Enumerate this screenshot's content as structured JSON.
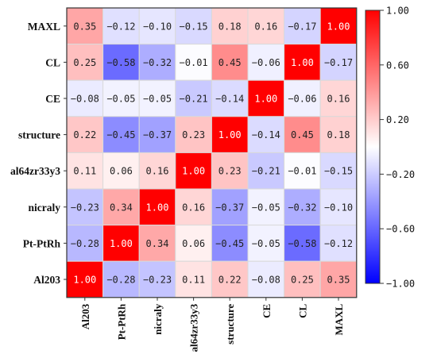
{
  "chart_data": {
    "type": "heatmap",
    "title": "",
    "rows": [
      "MAXL",
      "CL",
      "CE",
      "structure",
      "al64zr33y3",
      "nicraly",
      "Pt-PtRh",
      "Al203"
    ],
    "columns": [
      "Al203",
      "Pt-PtRh",
      "nicraly",
      "al64zr33y3",
      "structure",
      "CE",
      "CL",
      "MAXL"
    ],
    "values": [
      [
        0.35,
        -0.12,
        -0.1,
        -0.15,
        0.18,
        0.16,
        -0.17,
        1.0
      ],
      [
        0.25,
        -0.58,
        -0.32,
        -0.01,
        0.45,
        -0.06,
        1.0,
        -0.17
      ],
      [
        -0.08,
        -0.05,
        -0.05,
        -0.21,
        -0.14,
        1.0,
        -0.06,
        0.16
      ],
      [
        0.22,
        -0.45,
        -0.37,
        0.23,
        1.0,
        -0.14,
        0.45,
        0.18
      ],
      [
        0.11,
        0.06,
        0.16,
        1.0,
        0.23,
        -0.21,
        -0.01,
        -0.15
      ],
      [
        -0.23,
        0.34,
        1.0,
        0.16,
        -0.37,
        -0.05,
        -0.32,
        -0.1
      ],
      [
        -0.28,
        1.0,
        0.34,
        0.06,
        -0.45,
        -0.05,
        -0.58,
        -0.12
      ],
      [
        1.0,
        -0.28,
        -0.23,
        0.11,
        0.22,
        -0.08,
        0.25,
        0.35
      ]
    ],
    "value_labels": [
      [
        "0.35",
        "−0.12",
        "−0.10",
        "−0.15",
        "0.18",
        "0.16",
        "−0.17",
        "1.00"
      ],
      [
        "0.25",
        "−0.58",
        "−0.32",
        "−0.01",
        "0.45",
        "−0.06",
        "1.00",
        "−0.17"
      ],
      [
        "−0.08",
        "−0.05",
        "−0.05",
        "−0.21",
        "−0.14",
        "1.00",
        "−0.06",
        "0.16"
      ],
      [
        "0.22",
        "−0.45",
        "−0.37",
        "0.23",
        "1.00",
        "−0.14",
        "0.45",
        "0.18"
      ],
      [
        "0.11",
        "0.06",
        "0.16",
        "1.00",
        "0.23",
        "−0.21",
        "−0.01",
        "−0.15"
      ],
      [
        "−0.23",
        "0.34",
        "1.00",
        "0.16",
        "−0.37",
        "−0.05",
        "−0.32",
        "−0.10"
      ],
      [
        "−0.28",
        "1.00",
        "0.34",
        "0.06",
        "−0.45",
        "−0.05",
        "−0.58",
        "−0.12"
      ],
      [
        "1.00",
        "−0.28",
        "−0.23",
        "0.11",
        "0.22",
        "−0.08",
        "0.25",
        "0.35"
      ]
    ],
    "color_scale": {
      "min": -1.0,
      "max": 1.0,
      "low_color": "#0000ff",
      "mid_color": "#ffffff",
      "high_color": "#ff0000",
      "ticks": [
        1.0,
        0.6,
        0.2,
        -0.2,
        -0.6,
        -1.0
      ],
      "tick_labels": [
        "1.00",
        "0.60",
        "0.20",
        "−0.20",
        "−0.60",
        "−1.00"
      ]
    },
    "legend_position": "right"
  }
}
